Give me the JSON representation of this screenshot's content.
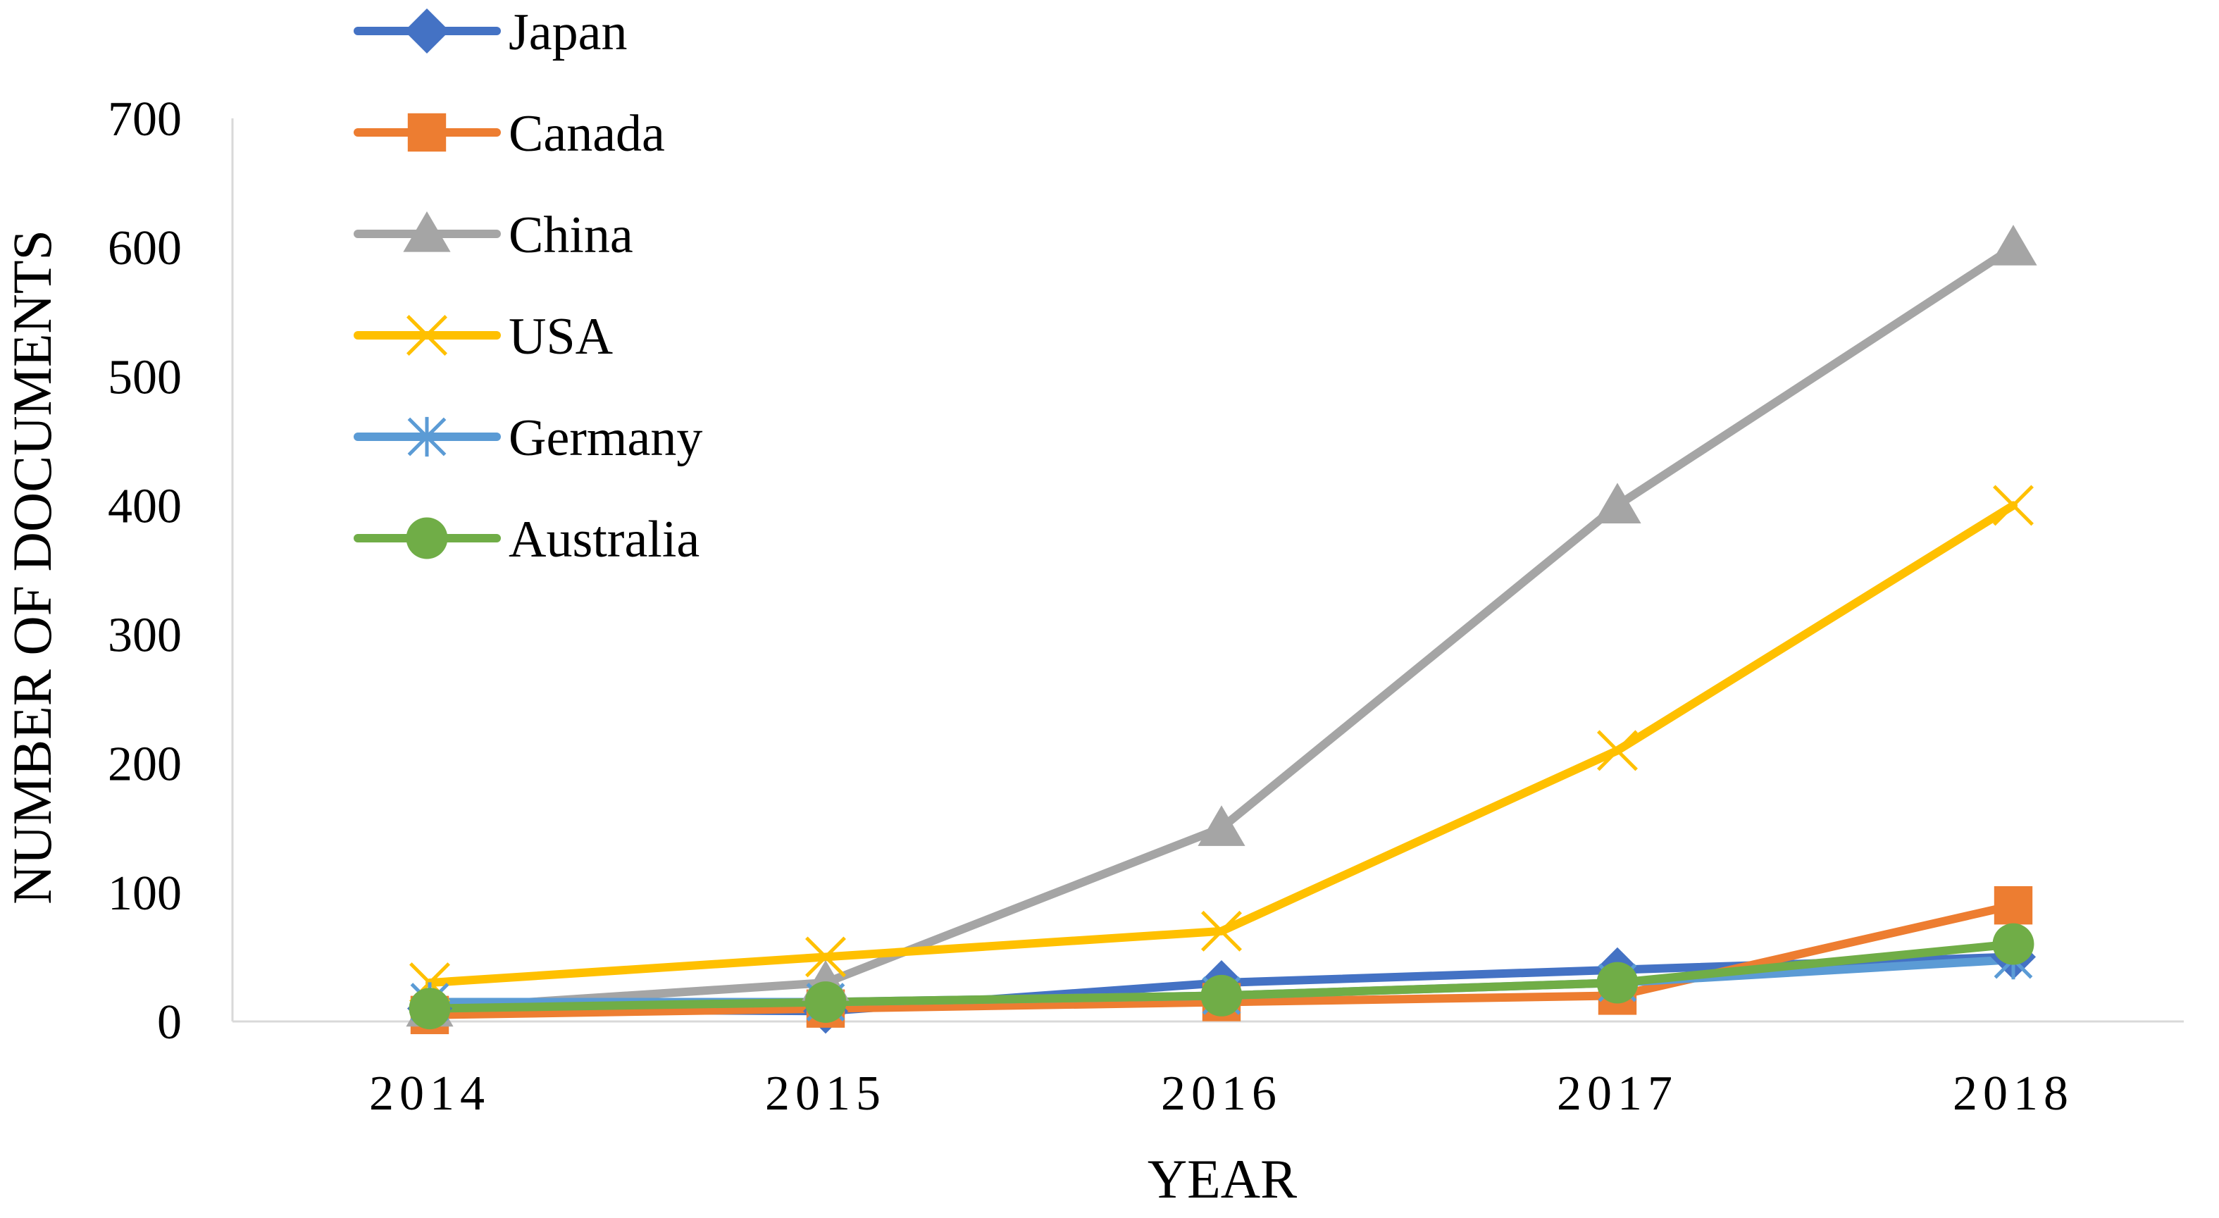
{
  "chart_data": {
    "type": "line",
    "xlabel": "YEAR",
    "ylabel": "NUMBER OF DOCUMENTS",
    "categories": [
      "2014",
      "2015",
      "2016",
      "2017",
      "2018"
    ],
    "ylim": [
      0,
      700
    ],
    "yticks": [
      0,
      100,
      200,
      300,
      400,
      500,
      600,
      700
    ],
    "grid": false,
    "legend_position": "top-left",
    "series": [
      {
        "name": "Japan",
        "color": "#4472C4",
        "marker": "diamond",
        "values": [
          10,
          8,
          30,
          40,
          50
        ]
      },
      {
        "name": "Canada",
        "color": "#ED7D31",
        "marker": "square",
        "values": [
          5,
          10,
          15,
          20,
          90
        ]
      },
      {
        "name": "China",
        "color": "#A5A5A5",
        "marker": "triangle",
        "values": [
          10,
          30,
          150,
          400,
          600
        ]
      },
      {
        "name": "USA",
        "color": "#FFC000",
        "marker": "x",
        "values": [
          30,
          50,
          70,
          210,
          400
        ]
      },
      {
        "name": "Germany",
        "color": "#5B9BD5",
        "marker": "asterisk",
        "values": [
          15,
          15,
          20,
          30,
          48
        ]
      },
      {
        "name": "Australia",
        "color": "#70AD47",
        "marker": "circle",
        "values": [
          10,
          15,
          20,
          30,
          60
        ]
      }
    ]
  }
}
